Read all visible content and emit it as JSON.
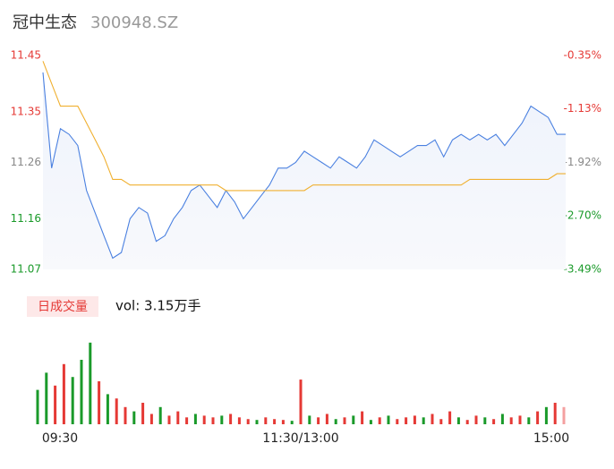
{
  "header": {
    "name": "冠中生态",
    "code": "300948.SZ"
  },
  "chart_data": [
    {
      "type": "line",
      "ylim": [
        11.07,
        11.45
      ],
      "yticks": [
        11.07,
        11.16,
        11.26,
        11.35,
        11.45
      ],
      "ytick_colors": [
        "#1a9a2a",
        "#1a9a2a",
        "#888888",
        "#e53935",
        "#e53935"
      ],
      "y2lim": [
        -3.49,
        -0.35
      ],
      "y2ticks": [
        {
          "value": -3.49,
          "label": "-3.49%"
        },
        {
          "value": -2.7,
          "label": "-2.70%"
        },
        {
          "value": -1.92,
          "label": "-1.92%"
        },
        {
          "value": -1.13,
          "label": "-1.13%"
        },
        {
          "value": -0.35,
          "label": "-0.35%"
        }
      ],
      "y2tick_colors": [
        "#1a9a2a",
        "#1a9a2a",
        "#888888",
        "#e53935",
        "#e53935"
      ],
      "series": [
        {
          "name": "price",
          "color": "#4a80e0",
          "area": true,
          "values": [
            11.42,
            11.25,
            11.32,
            11.31,
            11.29,
            11.21,
            11.17,
            11.13,
            11.09,
            11.1,
            11.16,
            11.18,
            11.17,
            11.12,
            11.13,
            11.16,
            11.18,
            11.21,
            11.22,
            11.2,
            11.18,
            11.21,
            11.19,
            11.16,
            11.18,
            11.2,
            11.22,
            11.25,
            11.25,
            11.26,
            11.28,
            11.27,
            11.26,
            11.25,
            11.27,
            11.26,
            11.25,
            11.27,
            11.3,
            11.29,
            11.28,
            11.27,
            11.28,
            11.29,
            11.29,
            11.3,
            11.27,
            11.3,
            11.31,
            11.3,
            11.31,
            11.3,
            11.31,
            11.29,
            11.31,
            11.33,
            11.36,
            11.35,
            11.34,
            11.31,
            11.31
          ]
        },
        {
          "name": "average",
          "color": "#f0b030",
          "area": false,
          "values": [
            11.44,
            11.4,
            11.36,
            11.36,
            11.36,
            11.33,
            11.3,
            11.27,
            11.23,
            11.23,
            11.22,
            11.22,
            11.22,
            11.22,
            11.22,
            11.22,
            11.22,
            11.22,
            11.22,
            11.22,
            11.22,
            11.21,
            11.21,
            11.21,
            11.21,
            11.21,
            11.21,
            11.21,
            11.21,
            11.21,
            11.21,
            11.22,
            11.22,
            11.22,
            11.22,
            11.22,
            11.22,
            11.22,
            11.22,
            11.22,
            11.22,
            11.22,
            11.22,
            11.22,
            11.22,
            11.22,
            11.22,
            11.22,
            11.22,
            11.23,
            11.23,
            11.23,
            11.23,
            11.23,
            11.23,
            11.23,
            11.23,
            11.23,
            11.23,
            11.24,
            11.24
          ]
        }
      ]
    },
    {
      "type": "bar",
      "legend_label": "日成交量",
      "annotation": "vol: 3.15万手",
      "categories": [
        "09:30",
        null,
        null,
        null,
        null,
        null,
        null,
        null,
        null,
        null,
        null,
        null,
        null,
        null,
        null,
        null,
        null,
        null,
        null,
        null,
        null,
        null,
        null,
        null,
        null,
        null,
        null,
        null,
        null,
        null,
        "11:30/13:00",
        null,
        null,
        null,
        null,
        null,
        null,
        null,
        null,
        null,
        null,
        null,
        null,
        null,
        null,
        null,
        null,
        null,
        null,
        null,
        null,
        null,
        null,
        null,
        null,
        null,
        null,
        null,
        null,
        null,
        "15:00"
      ],
      "ylim": [
        0,
        100
      ],
      "values": [
        40,
        60,
        45,
        70,
        55,
        75,
        95,
        50,
        35,
        30,
        20,
        15,
        25,
        12,
        20,
        10,
        15,
        8,
        12,
        10,
        8,
        10,
        12,
        8,
        6,
        5,
        8,
        6,
        5,
        4,
        52,
        10,
        8,
        12,
        6,
        8,
        10,
        15,
        5,
        8,
        10,
        6,
        8,
        10,
        8,
        12,
        6,
        15,
        8,
        5,
        10,
        8,
        6,
        12,
        8,
        10,
        8,
        15,
        20,
        25,
        20
      ],
      "bar_colors": [
        "#1a9a2a",
        "#1a9a2a",
        "#e53935",
        "#e53935",
        "#1a9a2a",
        "#1a9a2a",
        "#1a9a2a",
        "#e53935",
        "#1a9a2a",
        "#e53935",
        "#e53935",
        "#1a9a2a",
        "#e53935",
        "#e53935",
        "#1a9a2a",
        "#e53935",
        "#e53935",
        "#e53935",
        "#1a9a2a",
        "#e53935",
        "#e53935",
        "#1a9a2a",
        "#e53935",
        "#e53935",
        "#e53935",
        "#1a9a2a",
        "#e53935",
        "#e53935",
        "#e53935",
        "#1a9a2a",
        "#e53935",
        "#1a9a2a",
        "#e53935",
        "#e53935",
        "#1a9a2a",
        "#e53935",
        "#1a9a2a",
        "#e53935",
        "#1a9a2a",
        "#e53935",
        "#1a9a2a",
        "#e53935",
        "#e53935",
        "#e53935",
        "#1a9a2a",
        "#e53935",
        "#e53935",
        "#e53935",
        "#1a9a2a",
        "#e53935",
        "#e53935",
        "#1a9a2a",
        "#e53935",
        "#1a9a2a",
        "#e53935",
        "#e53935",
        "#1a9a2a",
        "#e53935",
        "#1a9a2a",
        "#e53935",
        "#f4a0a0"
      ]
    }
  ]
}
